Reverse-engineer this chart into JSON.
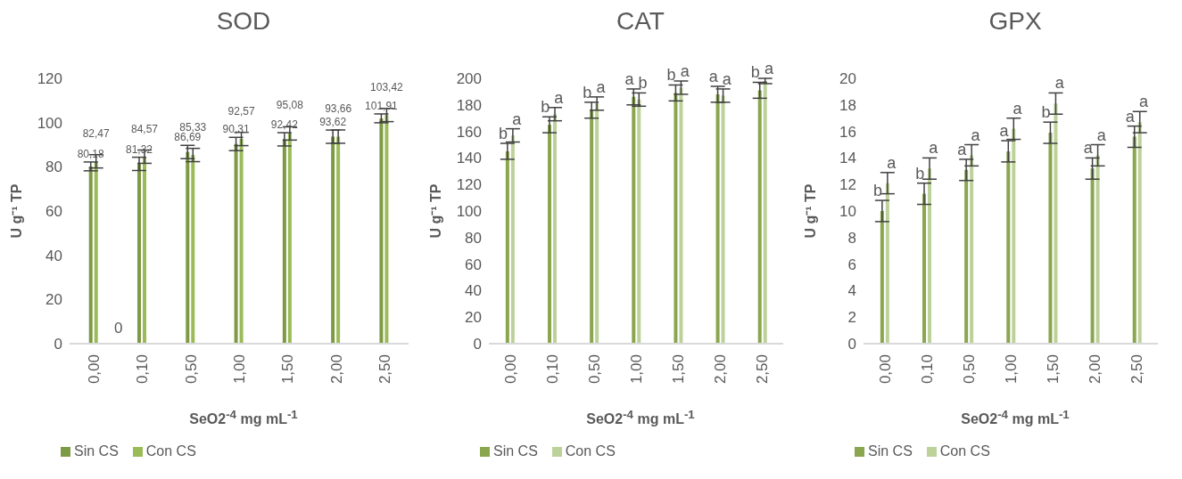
{
  "chart_data": [
    {
      "type": "bar",
      "title": "SOD",
      "xlabel": "SeO2$^{-4}$ mg mL$^{-1}$",
      "ylabel": "U g⁻¹ TP",
      "categories": [
        "0,00",
        "0,10",
        "0,50",
        "1,00",
        "1,50",
        "2,00",
        "2,50"
      ],
      "series": [
        {
          "name": "Sin CS",
          "color": "#7d9a45",
          "values": [
            80.18,
            81.32,
            86.69,
            90.31,
            92.42,
            93.62,
            101.91
          ],
          "errors": [
            2,
            3,
            3,
            3,
            3,
            3,
            2
          ],
          "value_labels": [
            "80,18",
            "81,32",
            "86,69",
            "90,31",
            "92,42",
            "93,62",
            "101,91"
          ]
        },
        {
          "name": "Con CS",
          "color": "#9bbb59",
          "values": [
            82.47,
            84.57,
            85.33,
            92.57,
            95.08,
            93.66,
            103.42
          ],
          "errors": [
            3,
            3,
            3,
            3,
            3,
            3,
            3
          ],
          "value_labels": [
            "82,47",
            "84,57",
            "85,33",
            "92,57",
            "95,08",
            "93,66",
            "103,42"
          ]
        }
      ],
      "ylim": [
        0,
        120
      ],
      "yticks": [
        0,
        20,
        40,
        60,
        80,
        100,
        120
      ],
      "legend": "bottom left",
      "annotations": [
        "0"
      ]
    },
    {
      "type": "bar",
      "title": "CAT",
      "xlabel": "SeO2$^{-4}$ mg mL$^{-1}$",
      "ylabel": "U g⁻¹ TP",
      "categories": [
        "0,00",
        "0,10",
        "0,50",
        "1,00",
        "1,50",
        "2,00",
        "2,50"
      ],
      "series": [
        {
          "name": "Sin CS",
          "color": "#8aa64f",
          "values": [
            145,
            165,
            176,
            186,
            189,
            188,
            191
          ],
          "errors": [
            6,
            6,
            6,
            6,
            6,
            6,
            6
          ]
        },
        {
          "name": "Con CS",
          "color": "#bdd19a",
          "values": [
            157,
            173,
            181,
            184,
            193,
            187,
            198
          ],
          "errors": [
            5,
            5,
            5,
            5,
            5,
            5,
            2
          ]
        }
      ],
      "ylim": [
        0,
        200
      ],
      "yticks": [
        0,
        20,
        40,
        60,
        80,
        100,
        120,
        140,
        160,
        180,
        200
      ],
      "legend": "bottom left",
      "annotations": [
        {
          "text": "b",
          "x": "0,00",
          "y": 145
        },
        {
          "text": "a",
          "x": "0,00",
          "y": 157
        },
        {
          "text": "b",
          "x": "0,10",
          "y": 165
        },
        {
          "text": "a",
          "x": "0,10",
          "y": 173
        },
        {
          "text": "b",
          "x": "0,50",
          "y": 176
        },
        {
          "text": "a",
          "x": "0,50",
          "y": 181
        },
        {
          "text": "a",
          "x": "1,00",
          "y": 186
        },
        {
          "text": "b",
          "x": "1,00",
          "y": 184
        },
        {
          "text": "b",
          "x": "1,50",
          "y": 189
        },
        {
          "text": "a",
          "x": "1,50",
          "y": 193
        },
        {
          "text": "a",
          "x": "2,00",
          "y": 188
        },
        {
          "text": "a",
          "x": "2,00",
          "y": 187
        },
        {
          "text": "b",
          "x": "2,50",
          "y": 191
        },
        {
          "text": "a",
          "x": "2,50",
          "y": 198
        }
      ]
    },
    {
      "type": "bar",
      "title": "GPX",
      "xlabel": "SeO2$^{-4}$ mg mL$^{-1}$",
      "ylabel": "U g⁻¹ TP",
      "categories": [
        "0,00",
        "0,10",
        "0,50",
        "1,00",
        "1,50",
        "2,00",
        "2,50"
      ],
      "series": [
        {
          "name": "Sin CS",
          "color": "#8aa64f",
          "values": [
            10,
            11.3,
            13.1,
            14.5,
            15.9,
            13.2,
            15.6
          ],
          "errors": [
            0.8,
            0.8,
            0.8,
            0.8,
            0.8,
            0.8,
            0.8
          ]
        },
        {
          "name": "Con CS",
          "color": "#bdd19a",
          "values": [
            12.1,
            13.2,
            14.2,
            16.2,
            18.1,
            14.2,
            16.7
          ],
          "errors": [
            0.8,
            0.8,
            0.8,
            0.8,
            0.8,
            0.8,
            0.8
          ]
        }
      ],
      "ylim": [
        0,
        20
      ],
      "yticks": [
        0,
        2,
        4,
        6,
        8,
        10,
        12,
        14,
        16,
        18,
        20
      ],
      "legend": "bottom left",
      "annotations": [
        {
          "text": "b",
          "x": "0,00",
          "y": 10
        },
        {
          "text": "a",
          "x": "0,00",
          "y": 12.1
        },
        {
          "text": "b",
          "x": "0,10",
          "y": 11.3
        },
        {
          "text": "a",
          "x": "0,10",
          "y": 13.2
        },
        {
          "text": "a",
          "x": "0,50",
          "y": 13.1
        },
        {
          "text": "a",
          "x": "0,50",
          "y": 14.2
        },
        {
          "text": "a",
          "x": "1,00",
          "y": 14.5
        },
        {
          "text": "a",
          "x": "1,00",
          "y": 16.2
        },
        {
          "text": "b",
          "x": "1,50",
          "y": 15.9
        },
        {
          "text": "a",
          "x": "1,50",
          "y": 18.1
        },
        {
          "text": "a",
          "x": "2,00",
          "y": 13.2
        },
        {
          "text": "a",
          "x": "2,00",
          "y": 14.2
        },
        {
          "text": "a",
          "x": "2,50",
          "y": 15.6
        },
        {
          "text": "a",
          "x": "2,50",
          "y": 16.7
        }
      ]
    }
  ]
}
